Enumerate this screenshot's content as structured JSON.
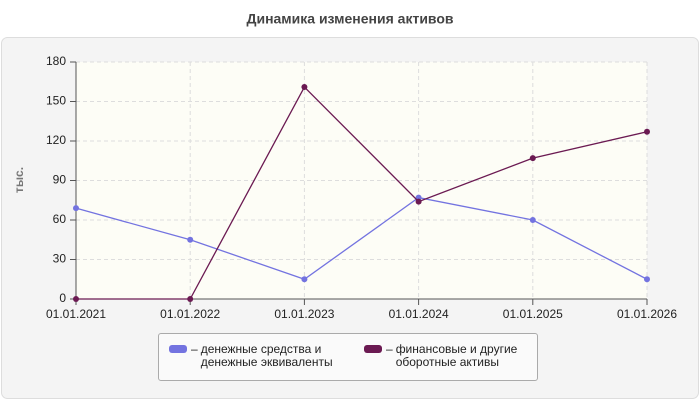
{
  "chart_data": {
    "type": "line",
    "title": "Динамика изменения активов",
    "y_label": "тыс.",
    "categories": [
      "01.01.2021",
      "01.01.2022",
      "01.01.2023",
      "01.01.2024",
      "01.01.2025",
      "01.01.2026"
    ],
    "series": [
      {
        "name": "денежные средства и денежные эквиваленты",
        "color": "#7373e0",
        "values": [
          69,
          45,
          15,
          77,
          60,
          15
        ]
      },
      {
        "name": "финансовые и другие оборотные активы",
        "color": "#6b1a52",
        "values": [
          0,
          0,
          161,
          74,
          107,
          127
        ]
      }
    ],
    "ylim": [
      0,
      180
    ],
    "yticks": [
      0,
      30,
      60,
      90,
      120,
      150,
      180
    ],
    "grid": true
  }
}
